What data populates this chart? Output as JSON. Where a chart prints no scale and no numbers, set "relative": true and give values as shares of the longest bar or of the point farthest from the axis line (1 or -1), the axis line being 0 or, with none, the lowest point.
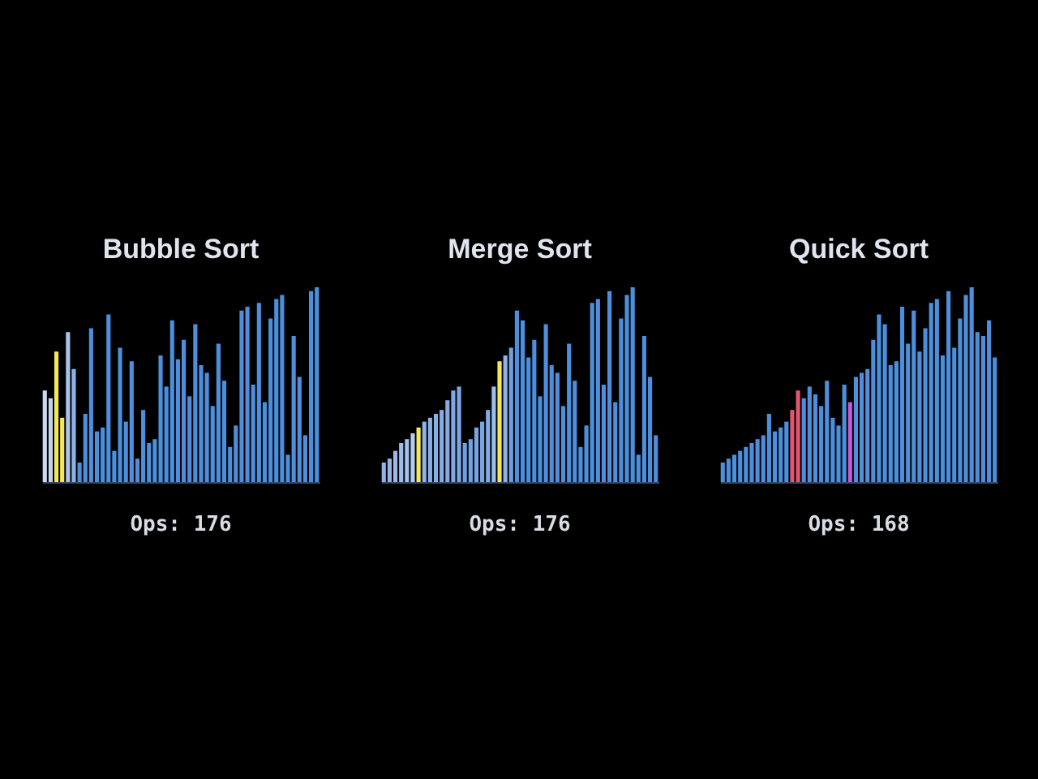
{
  "chart_data": [
    {
      "type": "bar",
      "title": "Bubble Sort",
      "relative": true,
      "annotations": [
        "Ops: 176"
      ],
      "categories": [
        null,
        null,
        null,
        null,
        null,
        null,
        null,
        null,
        null,
        null,
        null,
        null,
        null,
        null,
        null,
        null,
        null,
        null,
        null,
        null,
        null,
        null,
        null,
        null,
        null,
        null,
        null,
        null,
        null,
        null,
        null,
        null,
        null,
        null,
        null,
        null,
        null,
        null,
        null,
        null,
        null,
        null,
        null,
        null,
        null,
        null,
        null,
        null
      ],
      "values": [
        0.47,
        0.43,
        0.67,
        0.33,
        0.77,
        0.58,
        0.1,
        0.35,
        0.79,
        0.26,
        0.28,
        0.86,
        0.16,
        0.69,
        0.31,
        0.62,
        0.12,
        0.37,
        0.2,
        0.22,
        0.65,
        0.49,
        0.83,
        0.63,
        0.73,
        0.44,
        0.81,
        0.6,
        0.56,
        0.39,
        0.71,
        0.52,
        0.18,
        0.29,
        0.88,
        0.9,
        0.5,
        0.92,
        0.41,
        0.84,
        0.94,
        0.96,
        0.14,
        0.75,
        0.54,
        0.24,
        0.98,
        1
      ],
      "colors": [
        "#cdd9ec",
        "#c4d4ec",
        "#f4e85a",
        "#f4e85a",
        "#a9c4ec",
        "#8fb3e8",
        "#4d8fdc",
        "#4d8fdc",
        "#4d8fdc",
        "#4d8fdc",
        "#4d8fdc",
        "#4d8fdc",
        "#4d8fdc",
        "#4d8fdc",
        "#4d8fdc",
        "#4d8fdc",
        "#4d8fdc",
        "#4d8fdc",
        "#4d8fdc",
        "#4d8fdc",
        "#4d8fdc",
        "#4d8fdc",
        "#4d8fdc",
        "#4d8fdc",
        "#4d8fdc",
        "#4d8fdc",
        "#4d8fdc",
        "#4d8fdc",
        "#4d8fdc",
        "#4d8fdc",
        "#4d8fdc",
        "#4d8fdc",
        "#4d8fdc",
        "#4d8fdc",
        "#4d8fdc",
        "#4d8fdc",
        "#4d8fdc",
        "#4d8fdc",
        "#4d8fdc",
        "#4d8fdc",
        "#4d8fdc",
        "#4d8fdc",
        "#4d8fdc",
        "#4d8fdc",
        "#4d8fdc",
        "#4d8fdc",
        "#4d8fdc",
        "#4d8fdc"
      ]
    },
    {
      "type": "bar",
      "title": "Merge Sort",
      "relative": true,
      "annotations": [
        "Ops: 176"
      ],
      "categories": [
        null,
        null,
        null,
        null,
        null,
        null,
        null,
        null,
        null,
        null,
        null,
        null,
        null,
        null,
        null,
        null,
        null,
        null,
        null,
        null,
        null,
        null,
        null,
        null,
        null,
        null,
        null,
        null,
        null,
        null,
        null,
        null,
        null,
        null,
        null,
        null,
        null,
        null,
        null,
        null,
        null,
        null,
        null,
        null,
        null,
        null,
        null,
        null
      ],
      "values": [
        0.1,
        0.12,
        0.16,
        0.2,
        0.22,
        0.25,
        0.28,
        0.31,
        0.33,
        0.35,
        0.37,
        0.42,
        0.47,
        0.49,
        0.2,
        0.22,
        0.28,
        0.31,
        0.37,
        0.49,
        0.62,
        0.65,
        0.69,
        0.88,
        0.83,
        0.64,
        0.73,
        0.44,
        0.81,
        0.6,
        0.56,
        0.39,
        0.71,
        0.52,
        0.18,
        0.29,
        0.92,
        0.94,
        0.5,
        0.98,
        0.41,
        0.84,
        0.96,
        1,
        0.14,
        0.75,
        0.54,
        0.24
      ],
      "colors": [
        "#8fb3e8",
        "#93b6e9",
        "#98b9ea",
        "#9dbdeb",
        "#a3c1ec",
        "#b5ccee",
        "#f4e85a",
        "#8fb3e8",
        "#8cb1e7",
        "#89afe7",
        "#86ade6",
        "#82abe5",
        "#7fa8e4",
        "#7ca6e3",
        "#6f9fe2",
        "#73a1e2",
        "#78a4e3",
        "#7ca6e3",
        "#82abe5",
        "#9dbdeb",
        "#f4e85a",
        "#8fb3e8",
        "#6f9fe2",
        "#4d8fdc",
        "#4d8fdc",
        "#4d8fdc",
        "#4d8fdc",
        "#4d8fdc",
        "#4d8fdc",
        "#4d8fdc",
        "#4d8fdc",
        "#4d8fdc",
        "#4d8fdc",
        "#4d8fdc",
        "#4d8fdc",
        "#4d8fdc",
        "#4d8fdc",
        "#4d8fdc",
        "#4d8fdc",
        "#4d8fdc",
        "#4d8fdc",
        "#4d8fdc",
        "#4d8fdc",
        "#4d8fdc",
        "#4d8fdc",
        "#4d8fdc",
        "#4d8fdc",
        "#4d8fdc"
      ]
    },
    {
      "type": "bar",
      "title": "Quick Sort",
      "relative": true,
      "annotations": [
        "Ops: 168"
      ],
      "categories": [
        null,
        null,
        null,
        null,
        null,
        null,
        null,
        null,
        null,
        null,
        null,
        null,
        null,
        null,
        null,
        null,
        null,
        null,
        null,
        null,
        null,
        null,
        null,
        null,
        null,
        null,
        null,
        null,
        null,
        null,
        null,
        null,
        null,
        null,
        null,
        null,
        null,
        null,
        null,
        null,
        null,
        null,
        null,
        null,
        null,
        null,
        null,
        null
      ],
      "values": [
        0.1,
        0.12,
        0.14,
        0.16,
        0.18,
        0.2,
        0.22,
        0.24,
        0.35,
        0.26,
        0.28,
        0.31,
        0.37,
        0.47,
        0.43,
        0.49,
        0.45,
        0.39,
        0.52,
        0.33,
        0.29,
        0.5,
        0.41,
        0.54,
        0.56,
        0.58,
        0.73,
        0.86,
        0.81,
        0.6,
        0.62,
        0.9,
        0.71,
        0.88,
        0.67,
        0.79,
        0.92,
        0.94,
        0.65,
        0.98,
        0.69,
        0.84,
        0.96,
        1,
        0.77,
        0.75,
        0.83,
        0.64
      ],
      "colors": [
        "#4d8fdc",
        "#4d8fdc",
        "#4d8fdc",
        "#4d8fdc",
        "#4d8fdc",
        "#4d8fdc",
        "#4d8fdc",
        "#4d8fdc",
        "#4d8fdc",
        "#4d8fdc",
        "#4d8fdc",
        "#4d8fdc",
        "#e0566e",
        "#e0566e",
        "#4d8fdc",
        "#4d8fdc",
        "#4d8fdc",
        "#4d8fdc",
        "#4d8fdc",
        "#4d8fdc",
        "#4d8fdc",
        "#4d8fdc",
        "#c35ad6",
        "#4d8fdc",
        "#4d8fdc",
        "#4d8fdc",
        "#4d8fdc",
        "#4d8fdc",
        "#4d8fdc",
        "#4d8fdc",
        "#4d8fdc",
        "#4d8fdc",
        "#4d8fdc",
        "#4d8fdc",
        "#4d8fdc",
        "#4d8fdc",
        "#4d8fdc",
        "#4d8fdc",
        "#4d8fdc",
        "#4d8fdc",
        "#4d8fdc",
        "#4d8fdc",
        "#4d8fdc",
        "#4d8fdc",
        "#4d8fdc",
        "#4d8fdc",
        "#4d8fdc",
        "#4d8fdc"
      ]
    }
  ]
}
